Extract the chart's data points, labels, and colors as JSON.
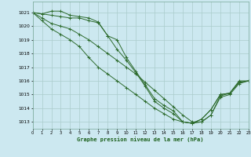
{
  "background_color": "#cce8f0",
  "grid_color": "#aacccc",
  "line_color": "#2d6b2d",
  "title": "Graphe pression niveau de la mer (hPa)",
  "xlim": [
    0,
    23
  ],
  "ylim": [
    1012.5,
    1021.8
  ],
  "xticks": [
    0,
    1,
    2,
    3,
    4,
    5,
    6,
    7,
    8,
    9,
    10,
    11,
    12,
    13,
    14,
    15,
    16,
    17,
    18,
    19,
    20,
    21,
    22,
    23
  ],
  "yticks": [
    1013,
    1014,
    1015,
    1016,
    1017,
    1018,
    1019,
    1020,
    1021
  ],
  "series": [
    [
      1021.0,
      1020.9,
      1021.1,
      1021.1,
      1020.8,
      1020.7,
      1020.6,
      1020.3,
      1019.3,
      1019.0,
      1017.7,
      1016.7,
      1015.7,
      1014.7,
      1014.2,
      1013.8,
      1013.0,
      1012.9,
      1013.2,
      1013.9,
      1015.0,
      1015.1,
      1015.9,
      1016.0
    ],
    [
      1021.0,
      1020.9,
      1020.8,
      1020.7,
      1020.6,
      1020.6,
      1020.4,
      1020.25,
      1019.3,
      1018.3,
      1017.5,
      1016.6,
      1015.6,
      1014.5,
      1014.0,
      1013.6,
      1013.0,
      1012.9,
      1013.2,
      1013.9,
      1015.0,
      1015.1,
      1015.9,
      1016.0
    ],
    [
      1021.0,
      1020.6,
      1020.2,
      1020.0,
      1019.8,
      1019.4,
      1019.0,
      1018.5,
      1018.0,
      1017.5,
      1017.0,
      1016.5,
      1015.9,
      1015.3,
      1014.7,
      1014.1,
      1013.5,
      1013.0,
      1013.0,
      1013.5,
      1014.9,
      1015.1,
      1016.0,
      1016.0
    ],
    [
      1021.0,
      1020.4,
      1019.8,
      1019.4,
      1019.0,
      1018.5,
      1017.7,
      1017.0,
      1016.5,
      1016.0,
      1015.5,
      1015.0,
      1014.5,
      1014.0,
      1013.6,
      1013.2,
      1013.0,
      1012.9,
      1013.0,
      1013.5,
      1014.8,
      1015.0,
      1015.8,
      1016.0
    ]
  ]
}
